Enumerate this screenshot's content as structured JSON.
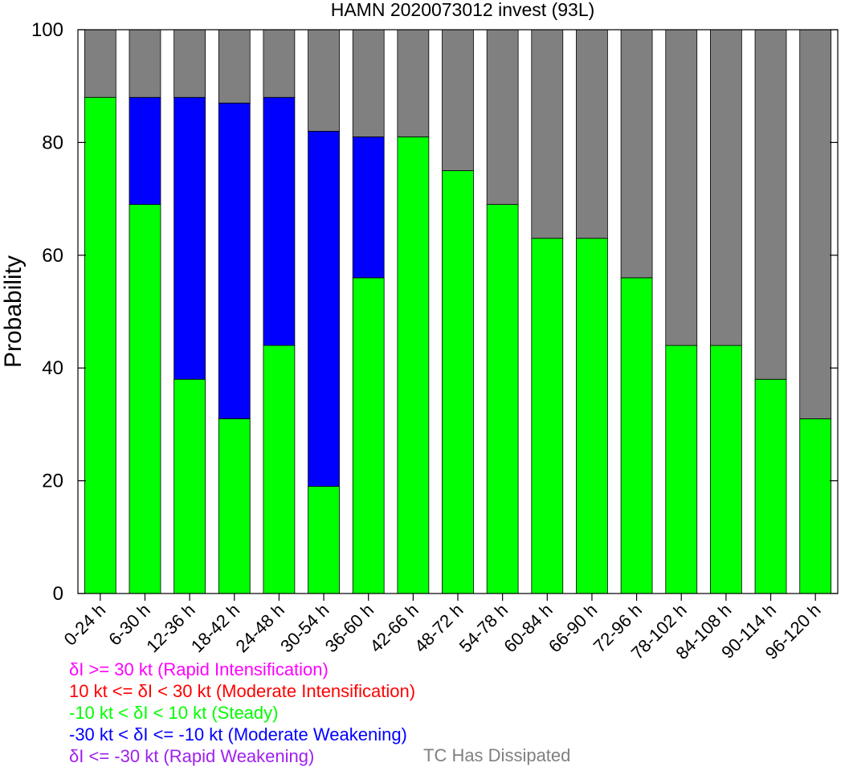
{
  "chart_data": {
    "type": "bar",
    "stacked": true,
    "title": "HAMN 2020073012 invest (93L)",
    "xlabel": "",
    "ylabel": "Probability",
    "ylim": [
      0,
      100
    ],
    "yticks": [
      0,
      20,
      40,
      60,
      80,
      100
    ],
    "grid": false,
    "categories": [
      "0-24 h",
      "6-30 h",
      "12-36 h",
      "18-42 h",
      "24-48 h",
      "30-54 h",
      "36-60 h",
      "42-66 h",
      "48-72 h",
      "54-78 h",
      "60-84 h",
      "66-90 h",
      "72-96 h",
      "78-102 h",
      "84-108 h",
      "90-114 h",
      "96-120 h"
    ],
    "series": [
      {
        "key": "steady",
        "color": "#00ff00",
        "values": [
          88,
          69,
          38,
          31,
          44,
          19,
          56,
          81,
          75,
          69,
          63,
          63,
          56,
          44,
          44,
          38,
          31
        ]
      },
      {
        "key": "moderate_weakening",
        "color": "#0000ff",
        "values": [
          0,
          19,
          50,
          56,
          44,
          63,
          25,
          0,
          0,
          0,
          0,
          0,
          0,
          0,
          0,
          0,
          0
        ]
      },
      {
        "key": "dissipated",
        "color": "#808080",
        "values": [
          12,
          12,
          12,
          13,
          12,
          18,
          19,
          19,
          25,
          31,
          37,
          37,
          44,
          56,
          56,
          62,
          69
        ]
      }
    ]
  },
  "legend": {
    "rapid_intensification": {
      "label": "δI >= 30 kt (Rapid Intensification)",
      "color": "#ff00ff"
    },
    "moderate_intensification": {
      "label": "10 kt <= δI < 30 kt (Moderate Intensification)",
      "color": "#ff0000"
    },
    "steady": {
      "label": "-10 kt < δI < 10 kt (Steady)",
      "color": "#00ff00"
    },
    "moderate_weakening": {
      "label": "-30 kt < δI <= -10 kt (Moderate Weakening)",
      "color": "#0000ff"
    },
    "rapid_weakening": {
      "label": "δI <= -30 kt (Rapid Weakening)",
      "color": "#a020f0"
    },
    "dissipated": {
      "label": "TC Has Dissipated",
      "color": "#808080"
    }
  }
}
